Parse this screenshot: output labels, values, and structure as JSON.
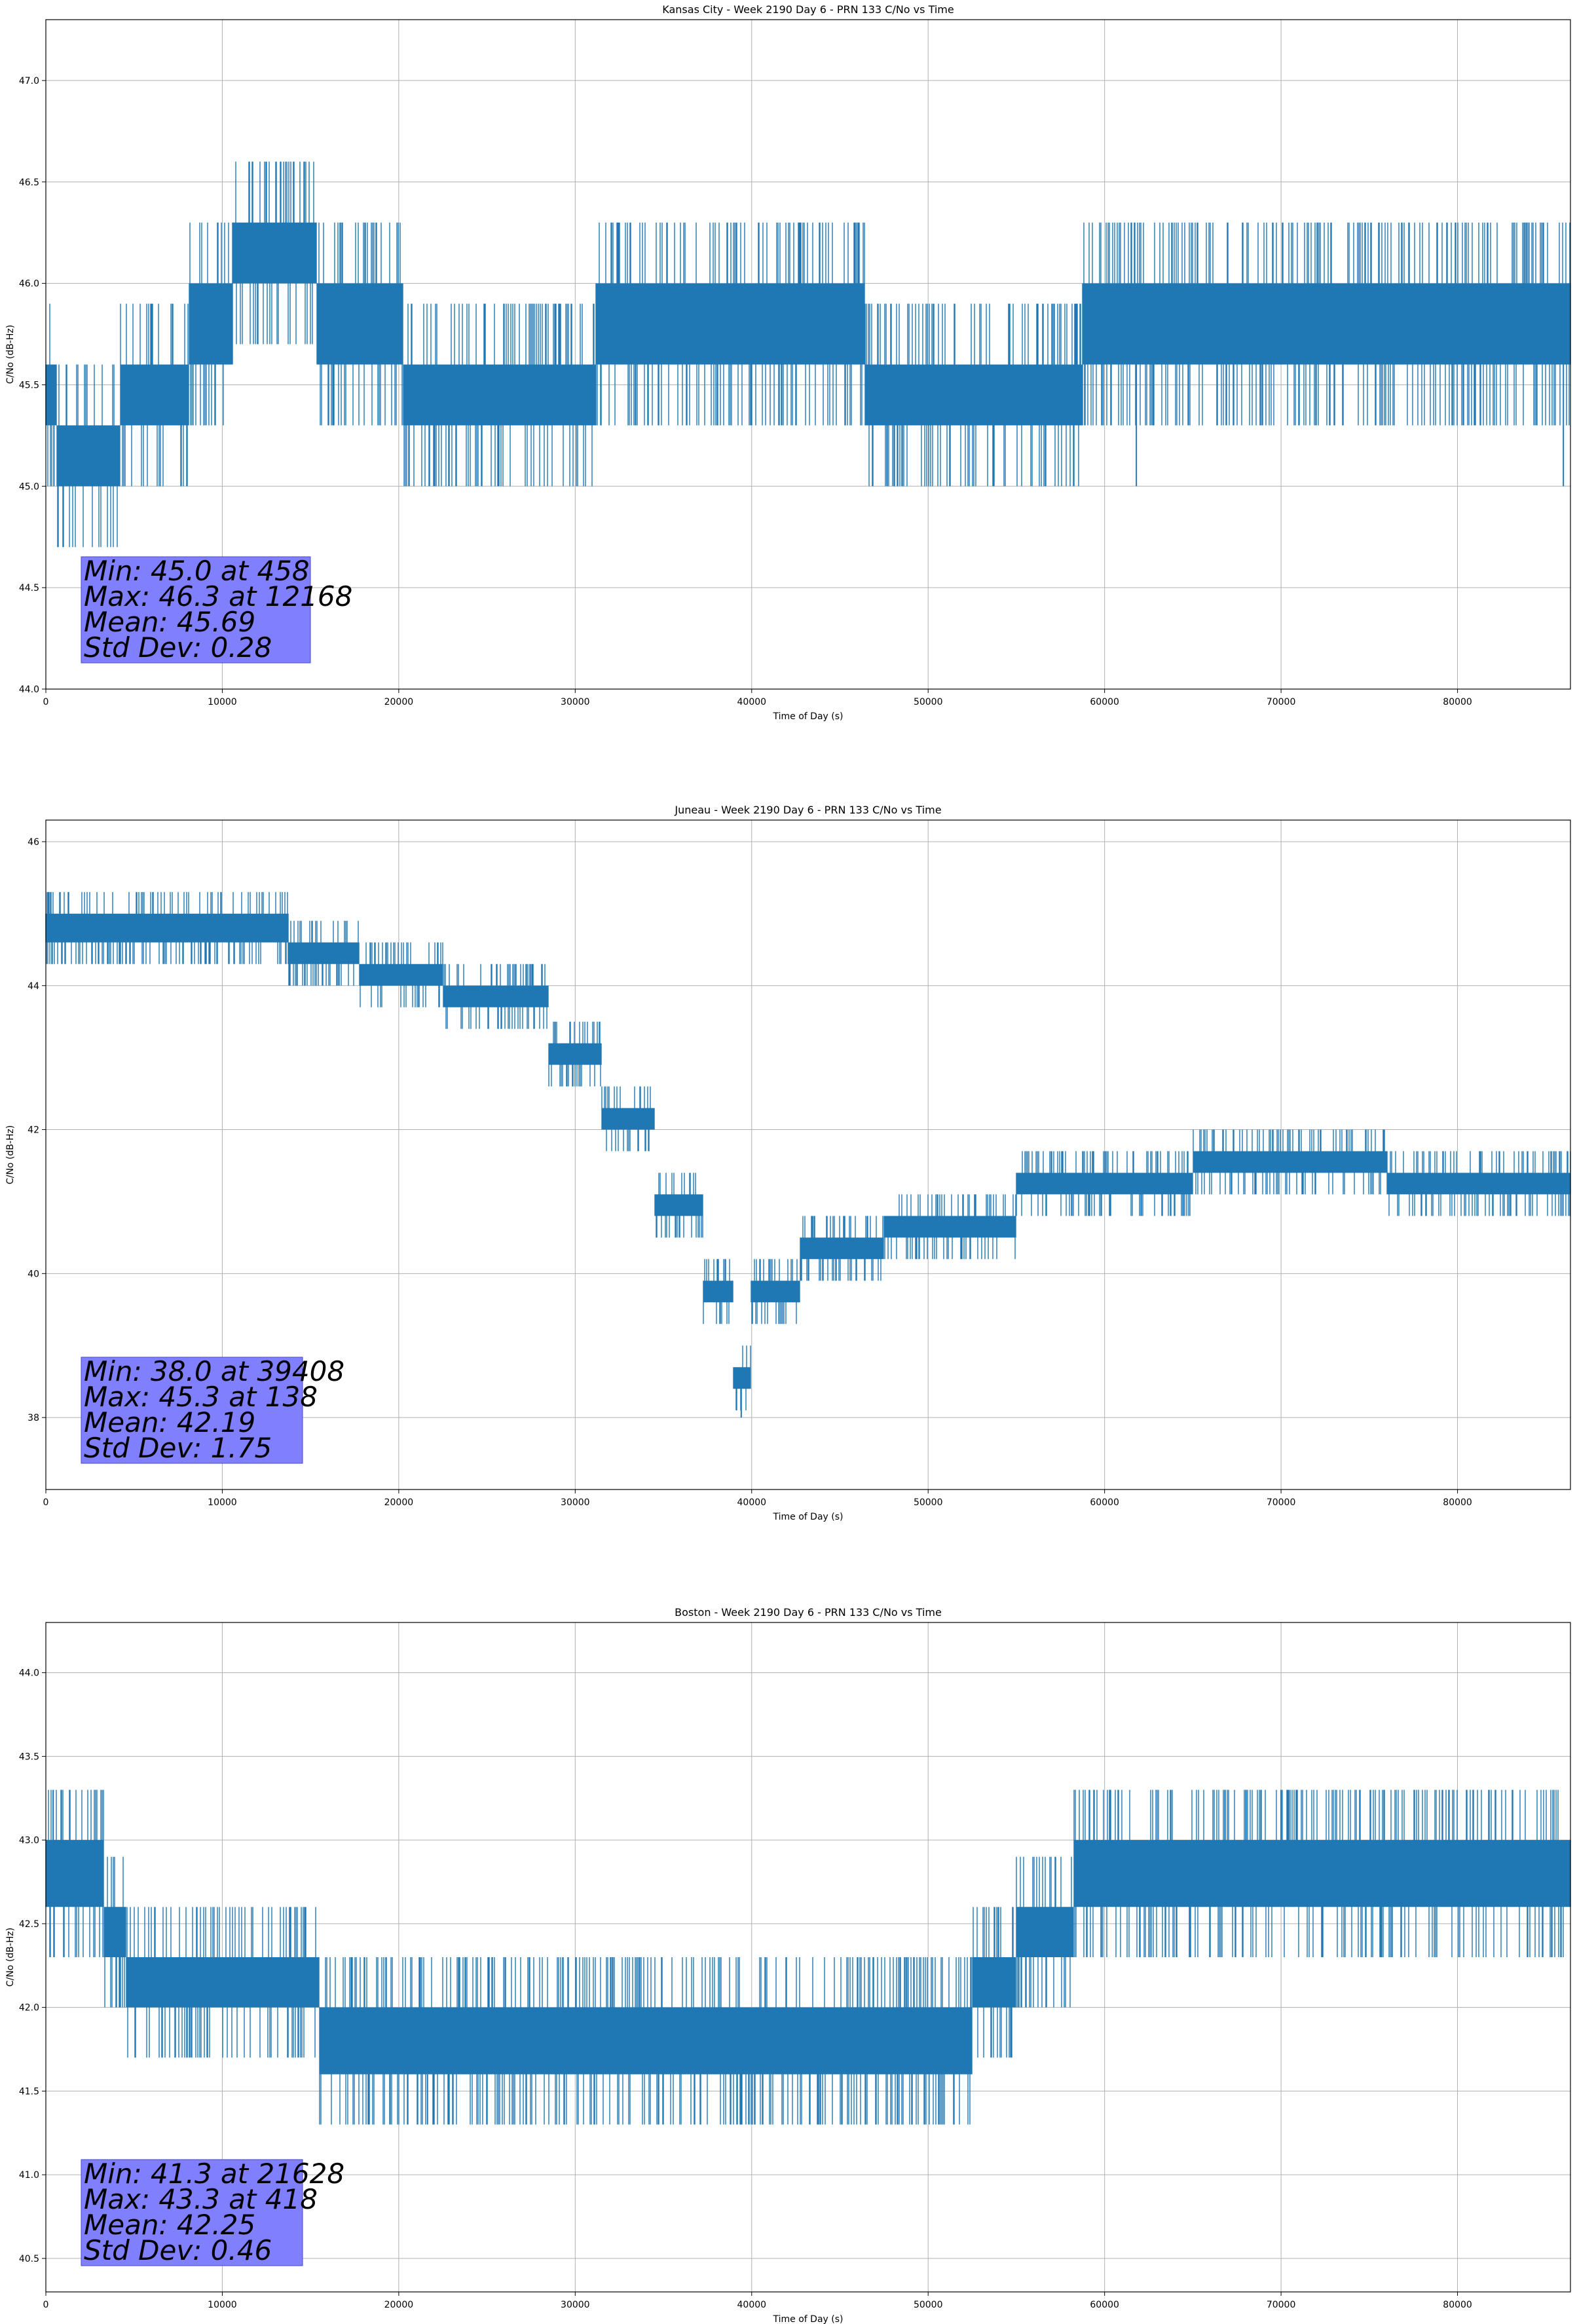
{
  "colors": {
    "series": "#1f77b4",
    "stats_box": "#8080ff",
    "grid": "#b0b0b0"
  },
  "chart_data": [
    {
      "type": "line",
      "title": "Kansas City - Week 2190 Day 6 - PRN 133 C/No vs Time",
      "xlabel": "Time of Day (s)",
      "ylabel": "C/No (dB-Hz)",
      "xlim": [
        0,
        86400
      ],
      "ylim": [
        44.0,
        47.3
      ],
      "grid": true,
      "xticks": [
        0,
        10000,
        20000,
        30000,
        40000,
        50000,
        60000,
        70000,
        80000
      ],
      "yticks": [
        44.0,
        44.5,
        45.0,
        45.5,
        46.0,
        46.5,
        47.0
      ],
      "ytick_decimals": 1,
      "series": [
        {
          "values_step": 0.3,
          "profile": [
            [
              0,
              45.3,
              45.6
            ],
            [
              1200,
              45.0,
              45.3
            ],
            [
              7200,
              45.3,
              45.6
            ],
            [
              9000,
              45.6,
              46.0
            ],
            [
              12200,
              46.0,
              46.3
            ],
            [
              18500,
              45.6,
              46.0
            ],
            [
              22000,
              45.3,
              45.6
            ],
            [
              40300,
              45.6,
              46.0
            ],
            [
              52500,
              45.3,
              45.6
            ],
            [
              58000,
              45.3,
              45.6
            ],
            [
              59500,
              45.6,
              46.0
            ],
            [
              86400,
              45.6,
              46.0
            ]
          ],
          "excursions": [
            [
              458,
              45.0
            ],
            [
              12168,
              46.3
            ],
            [
              61800,
              45.0
            ],
            [
              86000,
              45.0
            ]
          ]
        }
      ],
      "stats": [
        "Min: 45.0 at 458",
        "Max: 46.3 at 12168",
        "Mean: 45.69",
        "Std Dev: 0.28"
      ]
    },
    {
      "type": "line",
      "title": "Juneau - Week 2190 Day 6 - PRN 133 C/No vs Time",
      "xlabel": "Time of Day (s)",
      "ylabel": "C/No (dB-Hz)",
      "xlim": [
        0,
        86400
      ],
      "ylim": [
        37.0,
        46.3
      ],
      "grid": true,
      "xticks": [
        0,
        10000,
        20000,
        30000,
        40000,
        50000,
        60000,
        70000,
        80000
      ],
      "yticks": [
        38,
        40,
        42,
        44,
        46
      ],
      "ytick_decimals": 0,
      "series": [
        {
          "values_step": 0.3,
          "profile": [
            [
              0,
              44.6,
              45.0
            ],
            [
              10000,
              44.6,
              45.0
            ],
            [
              17500,
              44.3,
              44.6
            ],
            [
              18000,
              44.0,
              44.3
            ],
            [
              27000,
              43.7,
              44.0
            ],
            [
              30000,
              42.9,
              43.2
            ],
            [
              33000,
              42.0,
              42.3
            ],
            [
              36000,
              40.8,
              41.1
            ],
            [
              38500,
              39.6,
              39.9
            ],
            [
              39400,
              38.4,
              38.7
            ],
            [
              40500,
              39.6,
              39.9
            ],
            [
              45000,
              40.2,
              40.5
            ],
            [
              50000,
              40.5,
              40.8
            ],
            [
              60000,
              41.1,
              41.4
            ],
            [
              70000,
              41.4,
              41.7
            ],
            [
              82000,
              41.1,
              41.4
            ],
            [
              86400,
              41.1,
              41.4
            ]
          ],
          "excursions": [
            [
              39408,
              38.0
            ],
            [
              138,
              45.3
            ]
          ]
        }
      ],
      "stats": [
        "Min: 38.0 at 39408",
        "Max: 45.3 at 138",
        "Mean: 42.19",
        "Std Dev: 1.75"
      ]
    },
    {
      "type": "line",
      "title": "Boston - Week 2190 Day 6 - PRN 133 C/No vs Time",
      "xlabel": "Time of Day (s)",
      "ylabel": "C/No (dB-Hz)",
      "xlim": [
        0,
        86400
      ],
      "ylim": [
        40.3,
        44.3
      ],
      "grid": true,
      "xticks": [
        0,
        10000,
        20000,
        30000,
        40000,
        50000,
        60000,
        70000,
        80000
      ],
      "yticks": [
        40.5,
        41.0,
        41.5,
        42.0,
        42.5,
        43.0,
        43.5,
        44.0
      ],
      "ytick_decimals": 1,
      "series": [
        {
          "values_step": 0.3,
          "profile": [
            [
              0,
              42.6,
              43.0
            ],
            [
              3000,
              42.6,
              43.0
            ],
            [
              3600,
              42.3,
              42.6
            ],
            [
              5500,
              42.0,
              42.3
            ],
            [
              12000,
              42.0,
              42.3
            ],
            [
              19000,
              41.6,
              42.0
            ],
            [
              32000,
              41.6,
              42.0
            ],
            [
              52000,
              41.6,
              42.0
            ],
            [
              53000,
              42.0,
              42.3
            ],
            [
              57000,
              42.3,
              42.6
            ],
            [
              59500,
              42.6,
              43.0
            ],
            [
              86400,
              42.6,
              43.0
            ]
          ],
          "excursions": [
            [
              21628,
              41.3
            ],
            [
              418,
              43.3
            ],
            [
              70000,
              43.3
            ]
          ]
        }
      ],
      "stats": [
        "Min: 41.3 at 21628",
        "Max: 43.3 at 418",
        "Mean: 42.25",
        "Std Dev: 0.46"
      ]
    }
  ]
}
